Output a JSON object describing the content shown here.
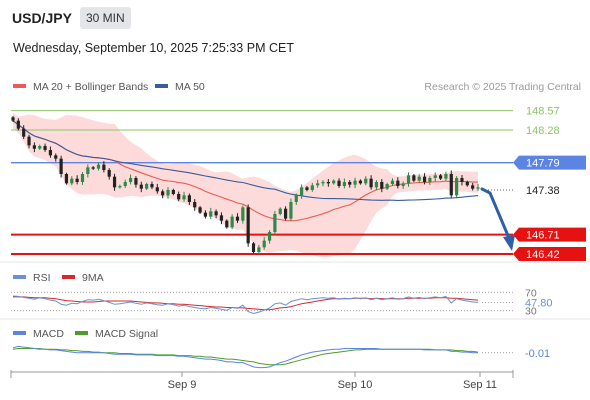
{
  "header": {
    "symbol": "USD/JPY",
    "timeframe": "30 MIN",
    "datetime": "Wednesday, September 10, 2025 7:25:33 PM CET"
  },
  "colors": {
    "ma20": "#ee5a52",
    "bollinger_fill": "#fbd5d3",
    "ma50": "#3a5c9a",
    "resistance": "#8cc466",
    "pivot": "#5b84e3",
    "support": "#e61212",
    "last_price_tag": "#222222",
    "candle_up": "#2d8a48",
    "candle_down": "#222222",
    "rsi": "#6c8fd6",
    "rsi_9ma": "#d42a2a",
    "macd": "#5b84e3",
    "macd_signal": "#4d9c2a",
    "forecast_arrow": "#2e5fa8"
  },
  "legend": {
    "ma20_label": "MA 20 + Bollinger Bands",
    "ma50_label": "MA 50",
    "credit": "Research © 2025 Trading Central"
  },
  "chart_data": {
    "type": "candlestick",
    "instrument": "USD/JPY",
    "timeframe": "30 MIN",
    "x_ticks": [
      "Sep 9",
      "Sep 10",
      "Sep 11"
    ],
    "y_range": [
      146.3,
      148.7
    ],
    "levels": [
      {
        "price": 148.57,
        "label": "148.57",
        "kind": "resistance"
      },
      {
        "price": 148.28,
        "label": "148.28",
        "kind": "resistance"
      },
      {
        "price": 147.79,
        "label": "147.79",
        "kind": "pivot"
      },
      {
        "price": 147.38,
        "label": "147.38",
        "kind": "last"
      },
      {
        "price": 146.71,
        "label": "146.71",
        "kind": "support"
      },
      {
        "price": 146.42,
        "label": "146.42",
        "kind": "support"
      }
    ],
    "forecast": {
      "from": 147.38,
      "to": 146.42
    },
    "close": [
      148.42,
      148.3,
      148.18,
      148.05,
      148.0,
      148.04,
      147.98,
      147.9,
      147.85,
      147.62,
      147.48,
      147.55,
      147.5,
      147.62,
      147.72,
      147.7,
      147.76,
      147.68,
      147.58,
      147.42,
      147.44,
      147.5,
      147.56,
      147.46,
      147.4,
      147.47,
      147.42,
      147.36,
      147.3,
      147.38,
      147.32,
      147.24,
      147.3,
      147.2,
      147.12,
      147.04,
      146.98,
      147.06,
      147.0,
      146.92,
      146.82,
      146.98,
      146.92,
      147.12,
      146.58,
      146.45,
      146.52,
      146.62,
      146.75,
      147.02,
      147.1,
      146.95,
      147.2,
      147.3,
      147.42,
      147.38,
      147.45,
      147.48,
      147.5,
      147.48,
      147.52,
      147.44,
      147.5,
      147.46,
      147.52,
      147.48,
      147.55,
      147.42,
      147.5,
      147.4,
      147.47,
      147.52,
      147.44,
      147.48,
      147.6,
      147.52,
      147.58,
      147.5,
      147.56,
      147.6,
      147.55,
      147.62,
      147.3,
      147.56,
      147.5,
      147.45,
      147.4,
      147.42
    ],
    "rsi": {
      "label": "RSI",
      "ma_label": "9MA",
      "value": 47.8,
      "value_label": "47.80",
      "levels": [
        70,
        30
      ],
      "level_labels": [
        "70",
        "30"
      ],
      "values": [
        62,
        61,
        59,
        57,
        55,
        58,
        56,
        53,
        51,
        44,
        42,
        46,
        45,
        50,
        54,
        53,
        55,
        52,
        48,
        44,
        45,
        47,
        49,
        46,
        44,
        47,
        45,
        43,
        42,
        45,
        43,
        40,
        42,
        39,
        37,
        35,
        34,
        37,
        35,
        33,
        31,
        37,
        35,
        42,
        28,
        24,
        27,
        31,
        36,
        45,
        47,
        42,
        50,
        53,
        56,
        54,
        56,
        57,
        58,
        57,
        58,
        55,
        57,
        56,
        58,
        56,
        58,
        54,
        57,
        54,
        56,
        58,
        55,
        56,
        60,
        57,
        59,
        56,
        58,
        60,
        58,
        61,
        47,
        56,
        53,
        51,
        49,
        48
      ],
      "ma_values": [
        60,
        60,
        60,
        59,
        58,
        58,
        58,
        57,
        56,
        54,
        52,
        51,
        50,
        49,
        49,
        49,
        50,
        51,
        51,
        51,
        51,
        51,
        51,
        50,
        49,
        48,
        47,
        47,
        46,
        45,
        45,
        44,
        44,
        43,
        42,
        41,
        40,
        39,
        38,
        38,
        37,
        37,
        36,
        36,
        35,
        34,
        33,
        32,
        32,
        34,
        36,
        37,
        39,
        42,
        45,
        47,
        49,
        51,
        53,
        55,
        56,
        56,
        56,
        56,
        57,
        57,
        57,
        56,
        57,
        56,
        56,
        56,
        56,
        56,
        57,
        57,
        57,
        57,
        57,
        58,
        58,
        58,
        57,
        57,
        56,
        55,
        54,
        53
      ]
    },
    "macd": {
      "label": "MACD",
      "signal_label": "MACD Signal",
      "value": -0.01,
      "value_label": "-0.01",
      "values": [
        0.06,
        0.08,
        0.07,
        0.06,
        0.05,
        0.04,
        0.04,
        0.03,
        0.03,
        0.02,
        0.01,
        0.0,
        -0.01,
        -0.01,
        -0.01,
        -0.01,
        -0.01,
        -0.01,
        -0.02,
        -0.03,
        -0.03,
        -0.03,
        -0.03,
        -0.04,
        -0.04,
        -0.04,
        -0.04,
        -0.05,
        -0.05,
        -0.05,
        -0.05,
        -0.06,
        -0.06,
        -0.07,
        -0.08,
        -0.09,
        -0.1,
        -0.1,
        -0.11,
        -0.12,
        -0.14,
        -0.14,
        -0.15,
        -0.15,
        -0.18,
        -0.21,
        -0.22,
        -0.22,
        -0.21,
        -0.18,
        -0.15,
        -0.13,
        -0.1,
        -0.07,
        -0.04,
        -0.02,
        0.0,
        0.01,
        0.02,
        0.03,
        0.04,
        0.04,
        0.05,
        0.05,
        0.05,
        0.05,
        0.05,
        0.05,
        0.05,
        0.04,
        0.04,
        0.04,
        0.04,
        0.04,
        0.04,
        0.04,
        0.04,
        0.03,
        0.03,
        0.03,
        0.03,
        0.03,
        0.01,
        0.01,
        0.0,
        0.0,
        -0.01,
        -0.01
      ],
      "signal_values": [
        0.04,
        0.05,
        0.05,
        0.05,
        0.05,
        0.05,
        0.04,
        0.04,
        0.04,
        0.03,
        0.03,
        0.02,
        0.02,
        0.01,
        0.01,
        0.0,
        0.0,
        -0.01,
        -0.01,
        -0.01,
        -0.02,
        -0.02,
        -0.02,
        -0.03,
        -0.03,
        -0.03,
        -0.03,
        -0.04,
        -0.04,
        -0.04,
        -0.04,
        -0.05,
        -0.05,
        -0.05,
        -0.06,
        -0.06,
        -0.07,
        -0.07,
        -0.08,
        -0.09,
        -0.1,
        -0.1,
        -0.11,
        -0.12,
        -0.13,
        -0.14,
        -0.16,
        -0.17,
        -0.18,
        -0.18,
        -0.18,
        -0.17,
        -0.15,
        -0.13,
        -0.11,
        -0.09,
        -0.07,
        -0.05,
        -0.03,
        -0.02,
        -0.01,
        0.0,
        0.01,
        0.02,
        0.03,
        0.03,
        0.04,
        0.04,
        0.04,
        0.04,
        0.04,
        0.04,
        0.04,
        0.04,
        0.04,
        0.04,
        0.04,
        0.04,
        0.04,
        0.03,
        0.03,
        0.03,
        0.03,
        0.02,
        0.02,
        0.01,
        0.01,
        0.0
      ]
    }
  }
}
